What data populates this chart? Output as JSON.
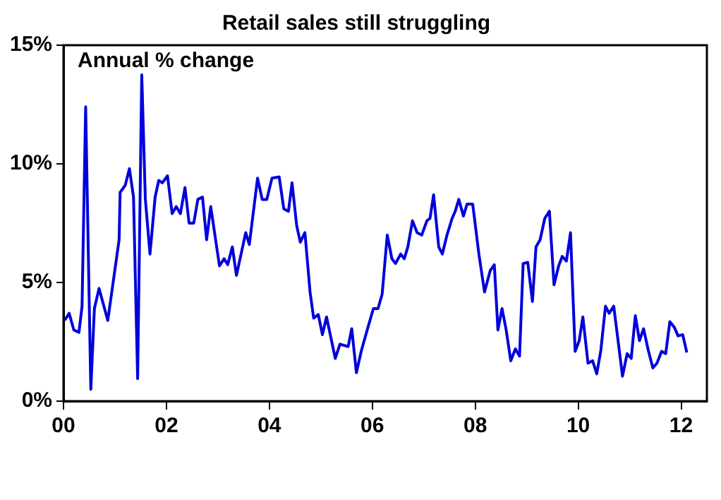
{
  "chart_data": {
    "type": "line",
    "title": "Retail sales still struggling",
    "annotations": [
      "Annual % change"
    ],
    "xlim": [
      2000,
      2012.5
    ],
    "xticks": [
      {
        "value": 2000,
        "label": "00"
      },
      {
        "value": 2002,
        "label": "02"
      },
      {
        "value": 2004,
        "label": "04"
      },
      {
        "value": 2006,
        "label": "06"
      },
      {
        "value": 2008,
        "label": "08"
      },
      {
        "value": 2010,
        "label": "10"
      },
      {
        "value": 2012,
        "label": "12"
      }
    ],
    "ylim": [
      0,
      15
    ],
    "yticks": [
      {
        "value": 0,
        "label": "0%"
      },
      {
        "value": 5,
        "label": "5%"
      },
      {
        "value": 10,
        "label": "10%"
      },
      {
        "value": 15,
        "label": "15%"
      }
    ],
    "grid": false,
    "legend": false,
    "marker": "none",
    "line_style": "solid",
    "series": [
      {
        "color": "#0000dd",
        "x": [
          2000.02,
          2000.11,
          2000.2,
          2000.3,
          2000.36,
          2000.43,
          2000.53,
          2000.6,
          2000.69,
          2000.86,
          2001.08,
          2001.1,
          2001.2,
          2001.28,
          2001.36,
          2001.44,
          2001.52,
          2001.59,
          2001.68,
          2001.78,
          2001.85,
          2001.92,
          2002.02,
          2002.11,
          2002.19,
          2002.27,
          2002.36,
          2002.44,
          2002.53,
          2002.61,
          2002.7,
          2002.78,
          2002.86,
          2003.03,
          2003.12,
          2003.19,
          2003.28,
          2003.36,
          2003.54,
          2003.61,
          2003.77,
          2003.86,
          2003.95,
          2004.05,
          2004.19,
          2004.28,
          2004.37,
          2004.44,
          2004.53,
          2004.6,
          2004.69,
          2004.79,
          2004.86,
          2004.95,
          2005.03,
          2005.11,
          2005.28,
          2005.37,
          2005.53,
          2005.6,
          2005.69,
          2005.79,
          2005.9,
          2006.02,
          2006.11,
          2006.19,
          2006.29,
          2006.38,
          2006.45,
          2006.55,
          2006.62,
          2006.69,
          2006.78,
          2006.87,
          2006.96,
          2007.06,
          2007.12,
          2007.19,
          2007.29,
          2007.36,
          2007.45,
          2007.55,
          2007.61,
          2007.68,
          2007.77,
          2007.84,
          2007.95,
          2008.07,
          2008.18,
          2008.29,
          2008.37,
          2008.44,
          2008.52,
          2008.6,
          2008.69,
          2008.78,
          2008.86,
          2008.93,
          2009.02,
          2009.11,
          2009.18,
          2009.26,
          2009.35,
          2009.44,
          2009.53,
          2009.62,
          2009.69,
          2009.77,
          2009.85,
          2009.94,
          2010.02,
          2010.09,
          2010.19,
          2010.28,
          2010.36,
          2010.44,
          2010.53,
          2010.6,
          2010.69,
          2010.78,
          2010.86,
          2010.95,
          2011.03,
          2011.11,
          2011.19,
          2011.27,
          2011.36,
          2011.45,
          2011.53,
          2011.62,
          2011.7,
          2011.78,
          2011.87,
          2011.94,
          2012.03,
          2012.11
        ],
        "values": [
          3.4,
          3.7,
          3.0,
          2.9,
          4.0,
          12.4,
          0.5,
          3.9,
          4.75,
          3.4,
          6.8,
          8.8,
          9.1,
          9.8,
          8.6,
          0.95,
          13.75,
          8.5,
          6.2,
          8.6,
          9.3,
          9.2,
          9.5,
          7.9,
          8.2,
          7.9,
          9.0,
          7.5,
          7.5,
          8.5,
          8.6,
          6.8,
          8.2,
          5.7,
          6.0,
          5.75,
          6.5,
          5.3,
          7.1,
          6.6,
          9.4,
          8.5,
          8.5,
          9.4,
          9.45,
          8.1,
          8.0,
          9.2,
          7.4,
          6.7,
          7.1,
          4.6,
          3.5,
          3.65,
          2.8,
          3.55,
          1.8,
          2.4,
          2.3,
          3.05,
          1.2,
          2.15,
          3.0,
          3.9,
          3.9,
          4.5,
          7.0,
          6.0,
          5.8,
          6.2,
          6.0,
          6.5,
          7.6,
          7.1,
          7.0,
          7.6,
          7.7,
          8.7,
          6.5,
          6.2,
          7.0,
          7.7,
          8.0,
          8.5,
          7.8,
          8.3,
          8.3,
          6.2,
          4.6,
          5.5,
          5.75,
          3.0,
          3.9,
          3.0,
          1.7,
          2.2,
          1.9,
          5.8,
          5.85,
          4.2,
          6.5,
          6.8,
          7.7,
          8.0,
          4.9,
          5.7,
          6.1,
          5.9,
          7.1,
          2.1,
          2.55,
          3.55,
          1.6,
          1.7,
          1.15,
          2.15,
          4.0,
          3.7,
          4.0,
          2.45,
          1.05,
          2.0,
          1.8,
          3.6,
          2.55,
          3.05,
          2.15,
          1.4,
          1.6,
          2.1,
          2.0,
          3.35,
          3.1,
          2.75,
          2.8,
          2.05
        ]
      }
    ]
  }
}
